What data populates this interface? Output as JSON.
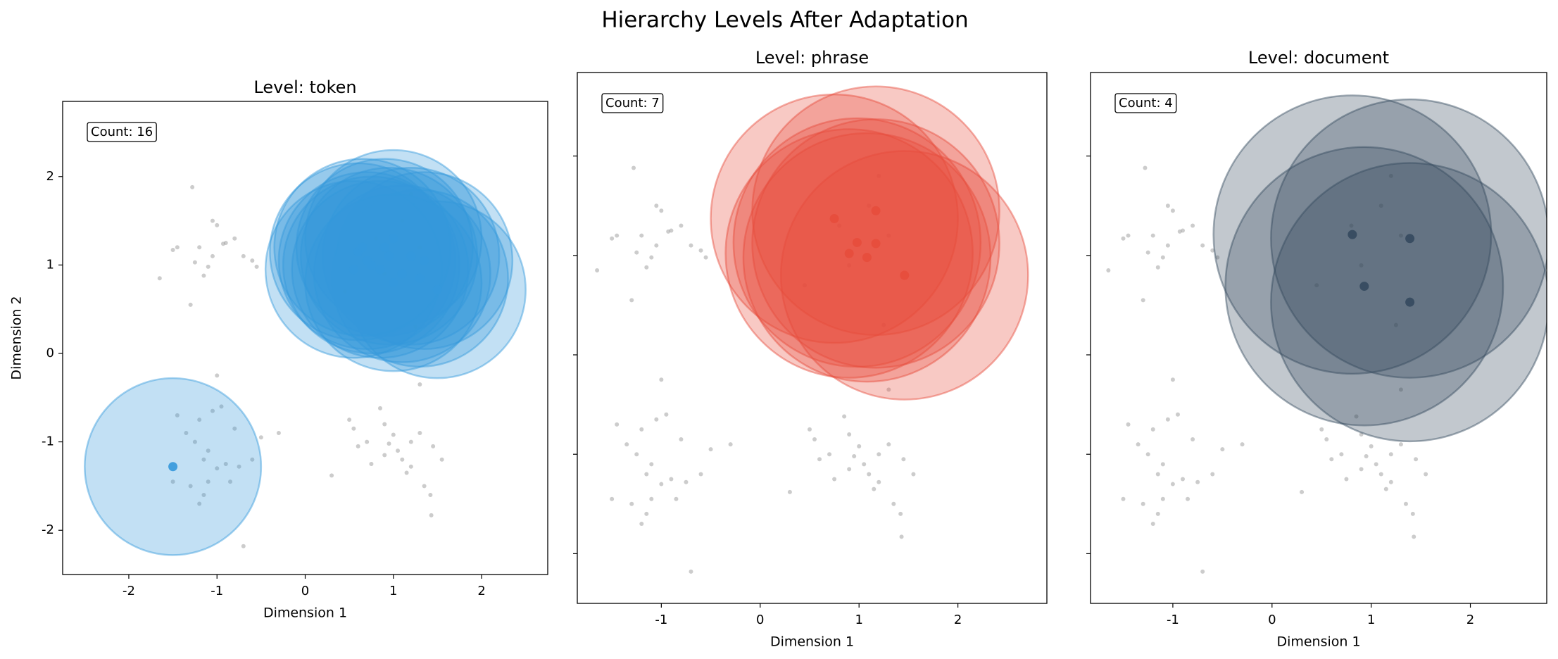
{
  "title": "Hierarchy Levels After Adaptation",
  "background_points": {
    "x": [
      -1.28,
      -1.5,
      -1.45,
      -1.05,
      -1.0,
      -0.93,
      -0.9,
      -1.05,
      -1.1,
      -1.15,
      -1.3,
      -1.65,
      -1.25,
      -0.8,
      -0.7,
      -0.6,
      -1.2,
      -0.55,
      -1.0,
      -1.45,
      -1.35,
      -1.2,
      -1.05,
      -0.95,
      -1.25,
      -1.1,
      -1.15,
      -1.0,
      -1.1,
      -1.15,
      -1.2,
      -0.9,
      -0.75,
      -0.8,
      -0.6,
      -0.5,
      -0.3,
      -0.7,
      -1.5,
      -1.3,
      -0.85,
      0.5,
      0.55,
      0.6,
      0.7,
      0.85,
      0.9,
      1.0,
      0.95,
      0.9,
      1.05,
      1.1,
      1.15,
      1.2,
      1.3,
      1.2,
      1.45,
      1.55,
      1.35,
      1.42,
      0.75,
      0.3,
      1.43,
      0.8,
      1.1,
      1.2,
      1.3,
      0.9,
      1.25,
      1.3,
      0.45
    ],
    "y": [
      1.88,
      1.17,
      1.2,
      1.5,
      1.45,
      1.24,
      1.25,
      1.1,
      0.98,
      0.88,
      0.55,
      0.85,
      1.03,
      1.3,
      1.1,
      1.05,
      1.2,
      0.98,
      -0.25,
      -0.7,
      -0.9,
      -0.75,
      -0.65,
      -0.6,
      -1.0,
      -1.1,
      -1.2,
      -1.3,
      -1.45,
      -1.6,
      -1.7,
      -1.25,
      -1.28,
      -0.85,
      -1.2,
      -0.95,
      -0.9,
      -2.18,
      -1.45,
      -1.5,
      -1.45,
      -0.75,
      -0.85,
      -1.05,
      -1.0,
      -0.62,
      -0.8,
      -0.92,
      -1.02,
      -1.15,
      -1.1,
      -1.2,
      -1.35,
      -1.0,
      -0.9,
      -1.28,
      -1.05,
      -1.2,
      -1.5,
      -1.6,
      -1.25,
      -1.38,
      -1.83,
      1.3,
      1.5,
      1.8,
      1.2,
      0.9,
      0.3,
      -0.35,
      0.7
    ]
  },
  "chart_data": [
    {
      "type": "scatter",
      "title": "Level: token",
      "x_label": "Dimension 1",
      "y_label": "Dimension 2",
      "annotation": "Count: 16",
      "color": "#3498db",
      "xlim": [
        -2.75,
        2.75
      ],
      "ylim": [
        -2.5,
        2.85
      ],
      "xticks": [
        -2,
        -1,
        0,
        1,
        2
      ],
      "yticks": [
        -2,
        -1,
        0,
        1,
        2
      ],
      "ytick_labels": true,
      "centers": {
        "x": [
          -1.5,
          0.6,
          1.0,
          1.35,
          1.5,
          0.85,
          0.75,
          1.1,
          1.2,
          0.95,
          0.7,
          0.9,
          1.3,
          0.55,
          1.0,
          0.65
        ],
        "y": [
          -1.28,
          1.15,
          1.3,
          1.05,
          0.72,
          0.95,
          1.0,
          0.9,
          1.1,
          1.1,
          1.05,
          1.2,
          0.85,
          0.95,
          0.8,
          1.2
        ],
        "radius": [
          1,
          1,
          1,
          1,
          1,
          1,
          1,
          1,
          1,
          1,
          1,
          1,
          1,
          1,
          1,
          1
        ]
      }
    },
    {
      "type": "scatter",
      "title": "Level: phrase",
      "x_label": "Dimension 1",
      "annotation": "Count: 7",
      "color": "#e74c3c",
      "xlim": [
        -1.85,
        2.9
      ],
      "ylim": [
        -2.5,
        2.84
      ],
      "xticks": [
        -1,
        0,
        1,
        2
      ],
      "yticks": [
        -2,
        -1,
        0,
        1,
        2
      ],
      "ytick_labels": false,
      "centers": {
        "x": [
          0.75,
          1.17,
          0.98,
          0.9,
          1.08,
          1.17,
          1.46
        ],
        "y": [
          1.37,
          1.45,
          1.13,
          1.02,
          0.98,
          1.12,
          0.8
        ],
        "radius": [
          1.25,
          1.25,
          1.25,
          1.25,
          1.25,
          1.25,
          1.25
        ]
      }
    },
    {
      "type": "scatter",
      "title": "Level: document",
      "x_label": "Dimension 1",
      "annotation": "Count: 4",
      "color": "#34495e",
      "xlim": [
        -1.83,
        2.77
      ],
      "ylim": [
        -2.5,
        2.84
      ],
      "xticks": [
        -1,
        0,
        1,
        2
      ],
      "yticks": [
        -2,
        -1,
        0,
        1,
        2
      ],
      "ytick_labels": false,
      "centers": {
        "x": [
          0.81,
          1.39,
          0.93,
          1.39
        ],
        "y": [
          1.21,
          1.17,
          0.69,
          0.53
        ],
        "radius": [
          1.4,
          1.4,
          1.4,
          1.4
        ]
      }
    }
  ]
}
